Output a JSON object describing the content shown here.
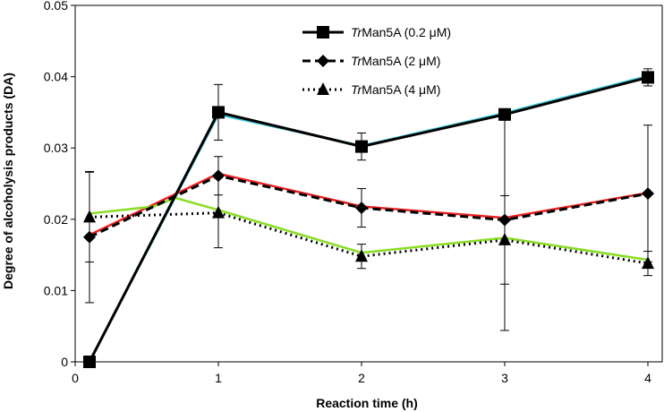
{
  "chart_data": {
    "type": "line",
    "title": "",
    "xlabel": "Reaction time (h)",
    "ylabel": "Degree of alcoholysis products (DA)",
    "xlim": [
      0,
      4.1
    ],
    "ylim": [
      0,
      0.05
    ],
    "xticks": [
      "0",
      "1",
      "2",
      "3",
      "4"
    ],
    "yticks": [
      "0",
      "0.01",
      "0.02",
      "0.03",
      "0.04",
      "0.05"
    ],
    "series": [
      {
        "name_italic": "Tr",
        "name_rest": "Man5A (0.2 μM)",
        "marker": "square",
        "line_style": "solid",
        "x": [
          0.1,
          1,
          2,
          3,
          4
        ],
        "y": [
          0.0,
          0.035,
          0.0302,
          0.0347,
          0.0399
        ],
        "err": [
          0.0,
          0.0039,
          0.0019,
          0.0008,
          0.0012
        ],
        "fit_color": "#33CCDD",
        "fit_y": [
          0.0,
          0.0347,
          0.0303,
          0.0349,
          0.0401
        ]
      },
      {
        "name_italic": "Tr",
        "name_rest": "Man5A (2 μM)",
        "marker": "diamond",
        "line_style": "dashed",
        "x": [
          0.1,
          1,
          2,
          3,
          4
        ],
        "y": [
          0.0175,
          0.0261,
          0.0216,
          0.0199,
          0.0236
        ],
        "err": [
          0.0092,
          0.0027,
          0.0027,
          0.0155,
          0.0096
        ],
        "fit_color": "#EE2222",
        "fit_y": [
          0.0178,
          0.0264,
          0.0218,
          0.0202,
          0.0237
        ]
      },
      {
        "name_italic": "Tr",
        "name_rest": "Man5A (4 μM)",
        "marker": "triangle",
        "line_style": "dotted",
        "x": [
          0.1,
          1,
          2,
          3,
          4
        ],
        "y": [
          0.0203,
          0.0209,
          0.0148,
          0.0171,
          0.0138
        ],
        "err": [
          0.0063,
          0.0049,
          0.0017,
          0.0062,
          0.0017
        ],
        "fit_color": "#88DD22",
        "fit_x": [
          0.1,
          0.55,
          0.7,
          1,
          2,
          3,
          4
        ],
        "fit_y": [
          0.0208,
          0.0218,
          0.023,
          0.0213,
          0.0153,
          0.0174,
          0.0143
        ]
      }
    ]
  }
}
